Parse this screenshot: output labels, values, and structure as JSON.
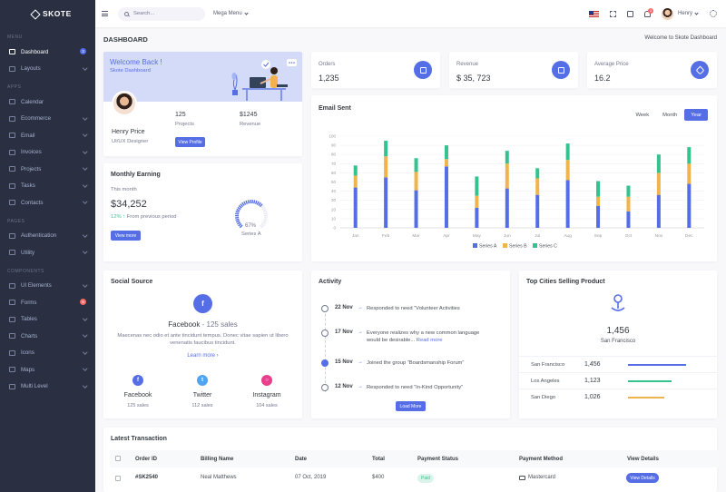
{
  "brand": "SKOTE",
  "sidebar": {
    "sections": [
      {
        "title": "MENU",
        "items": [
          {
            "label": "Dashboard",
            "active": true,
            "badge": "3",
            "badge_color": "#556ee6"
          },
          {
            "label": "Layouts",
            "chevron": true
          }
        ]
      },
      {
        "title": "APPS",
        "items": [
          {
            "label": "Calendar"
          },
          {
            "label": "Ecommerce",
            "chevron": true
          },
          {
            "label": "Email",
            "chevron": true
          },
          {
            "label": "Invoices",
            "chevron": true
          },
          {
            "label": "Projects",
            "chevron": true
          },
          {
            "label": "Tasks",
            "chevron": true
          },
          {
            "label": "Contacts",
            "chevron": true
          }
        ]
      },
      {
        "title": "PAGES",
        "items": [
          {
            "label": "Authentication",
            "chevron": true
          },
          {
            "label": "Utility",
            "chevron": true
          }
        ]
      },
      {
        "title": "COMPONENTS",
        "items": [
          {
            "label": "UI Elements",
            "chevron": true
          },
          {
            "label": "Forms",
            "badge": "6",
            "badge_color": "#f46a6a"
          },
          {
            "label": "Tables",
            "chevron": true
          },
          {
            "label": "Charts",
            "chevron": true
          },
          {
            "label": "Icons",
            "chevron": true
          },
          {
            "label": "Maps",
            "chevron": true
          },
          {
            "label": "Multi Level",
            "chevron": true
          }
        ]
      }
    ]
  },
  "header": {
    "search_placeholder": "Search...",
    "mega_menu": "Mega Menu",
    "notif_count": "3",
    "user_name": "Henry"
  },
  "page": {
    "title": "DASHBOARD",
    "welcome_crumb": "Welcome to Skote Dashboard"
  },
  "welcome": {
    "heading": "Welcome Back !",
    "sub": "Skote Dashboard",
    "name": "Henry Price",
    "role": "UI/UX Designer",
    "projects_value": "125",
    "projects_label": "Projects",
    "revenue_value": "$1245",
    "revenue_label": "Revenue",
    "button": "View Profile"
  },
  "kpis": [
    {
      "label": "Orders",
      "value": "1,235",
      "icon": "copy-icon"
    },
    {
      "label": "Revenue",
      "value": "$ 35, 723",
      "icon": "archive-icon"
    },
    {
      "label": "Average Price",
      "value": "16.2",
      "icon": "tag-icon"
    }
  ],
  "email_sent": {
    "title": "Email Sent",
    "tabs": [
      "Week",
      "Month",
      "Year"
    ],
    "active_tab": "Year"
  },
  "chart_data": {
    "type": "bar",
    "stacked": true,
    "categories": [
      "Jan",
      "Feb",
      "Mar",
      "Apr",
      "May",
      "Jun",
      "Jul",
      "Aug",
      "Sep",
      "Oct",
      "Nov",
      "Dec"
    ],
    "series": [
      {
        "name": "Series A",
        "color": "#556ee6",
        "values": [
          44,
          55,
          41,
          67,
          22,
          43,
          36,
          52,
          24,
          18,
          36,
          48
        ]
      },
      {
        "name": "Series B",
        "color": "#f1b44c",
        "values": [
          13,
          23,
          20,
          8,
          13,
          27,
          18,
          22,
          10,
          16,
          24,
          22
        ]
      },
      {
        "name": "Series C",
        "color": "#34c38f",
        "values": [
          11,
          17,
          15,
          15,
          21,
          14,
          11,
          18,
          17,
          12,
          20,
          18
        ]
      }
    ],
    "ylim": [
      0,
      100
    ],
    "yticks": [
      0,
      10,
      20,
      30,
      40,
      50,
      60,
      70,
      80,
      90,
      100
    ],
    "grid": true,
    "legend": "bottom"
  },
  "monthly": {
    "title": "Monthly Earning",
    "this_month_label": "This month",
    "amount": "$34,252",
    "pct": "12%",
    "pct_text": "From previous period",
    "button": "View more",
    "gauge_pct": 0.67,
    "gauge_value": "67%",
    "gauge_label": "Series A"
  },
  "social": {
    "title": "Social Source",
    "headline_name": "Facebook",
    "headline_sales": "- 125 sales",
    "description": "Maecenas nec odio et ante tincidunt tempus. Donec vitae sapien ut libero venenatis faucibus tincidunt.",
    "learn_more": "Learn more",
    "items": [
      {
        "name": "Facebook",
        "sales": "125 sales",
        "color": "#556ee6",
        "icon": "facebook-icon"
      },
      {
        "name": "Twitter",
        "sales": "112 sales",
        "color": "#50a5f1",
        "icon": "twitter-icon"
      },
      {
        "name": "Instagram",
        "sales": "104 sales",
        "color": "#e83e8c",
        "icon": "instagram-icon"
      }
    ]
  },
  "activity": {
    "title": "Activity",
    "items": [
      {
        "date": "22 Nov",
        "text": "Responded to need “Volunteer Activities",
        "link": ""
      },
      {
        "date": "17 Nov",
        "text": "Everyone realizes why a new common language would be desirable...",
        "link": "Read more"
      },
      {
        "date": "15 Nov",
        "text": "Joined the group “Boardsmanship Forum”",
        "link": ""
      },
      {
        "date": "12 Nov",
        "text": "Responded to need “In-Kind Opportunity”",
        "link": ""
      }
    ],
    "button": "Load More"
  },
  "cities": {
    "title": "Top Cities Selling Product",
    "value": "1,456",
    "city": "San Francisco",
    "rows": [
      {
        "name": "San Francisco",
        "value": "1,456",
        "fill": 0.8,
        "color": "#556ee6"
      },
      {
        "name": "Los Angeles",
        "value": "1,123",
        "fill": 0.6,
        "color": "#34c38f"
      },
      {
        "name": "San Diego",
        "value": "1,026",
        "fill": 0.5,
        "color": "#f1b44c"
      }
    ]
  },
  "transactions": {
    "title": "Latest Transaction",
    "headers": [
      "Order ID",
      "Billing Name",
      "Date",
      "Total",
      "Payment Status",
      "Payment Method",
      "View Details"
    ],
    "rows": [
      {
        "order": "#SK2540",
        "name": "Neal Matthews",
        "date": "07 Oct, 2019",
        "total": "$400",
        "status": "Paid",
        "method": "Mastercard",
        "button": "View Details"
      }
    ]
  }
}
